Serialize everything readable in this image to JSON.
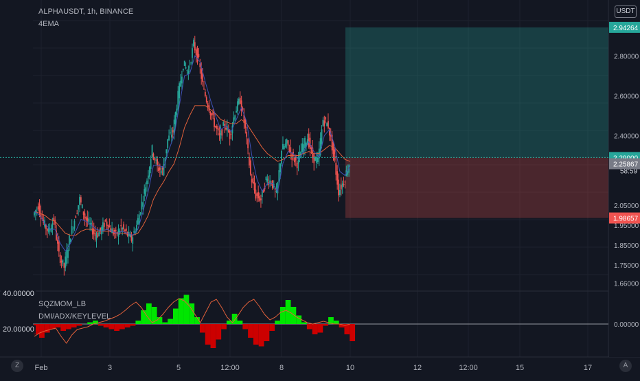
{
  "symbol_header": "ALPHAUSDT, 1h, BINANCE",
  "indicator_header": "4EMA",
  "currency_button": "USDT",
  "price_axis": {
    "ticks": [
      "2.80000",
      "2.60000",
      "2.40000",
      "2.05000",
      "1.95000",
      "1.85000",
      "1.75000",
      "1.66000"
    ],
    "tick_values": [
      2.8,
      2.6,
      2.4,
      2.05,
      1.95,
      1.85,
      1.75,
      1.66
    ],
    "labels": {
      "take_profit": "2.94264",
      "entry": "2.29000",
      "countdown": "58:59",
      "last_price": "2.25867",
      "stop_loss": "1.98657"
    }
  },
  "price_levels": {
    "take_profit": 2.94264,
    "entry": 2.29,
    "last": 2.25867,
    "stop_loss": 1.98657
  },
  "indicator_panel": {
    "title": "SQZMOM_LB",
    "subtitle": "DMI/ADX/KEYLEVEL",
    "left_labels": [
      "40.00000",
      "20.00000"
    ],
    "axis_tick": "0.00000"
  },
  "time_axis": [
    "Feb",
    "3",
    "5",
    "12:00",
    "8",
    "10",
    "12",
    "12:00",
    "15",
    "17"
  ],
  "corner_buttons": {
    "left": "Z",
    "right": "A"
  },
  "colors": {
    "background": "#131722",
    "bull": "#26a69a",
    "bear": "#ef5350",
    "ema_fast": "#3f51b5",
    "ema_slow": "#e0603a",
    "profit_zone": "rgba(38,166,154,0.28)",
    "loss_zone": "rgba(239,83,80,0.25)",
    "histogram_green": "#00e600",
    "histogram_red": "#cc0000"
  },
  "chart_data": {
    "type": "candlestick",
    "title": "ALPHAUSDT, 1h, BINANCE",
    "x": [
      "Feb",
      "3",
      "5",
      "12:00",
      "8",
      "10",
      "12",
      "12:00",
      "15",
      "17"
    ],
    "close_path": [
      2.0,
      2.05,
      1.96,
      1.92,
      1.98,
      1.8,
      1.74,
      1.88,
      1.98,
      2.08,
      1.99,
      1.95,
      1.9,
      1.92,
      1.97,
      1.93,
      1.9,
      1.94,
      1.91,
      1.88,
      1.95,
      2.06,
      2.18,
      2.33,
      2.24,
      2.22,
      2.38,
      2.42,
      2.6,
      2.76,
      2.72,
      2.86,
      2.77,
      2.62,
      2.54,
      2.46,
      2.39,
      2.46,
      2.4,
      2.52,
      2.58,
      2.43,
      2.2,
      2.1,
      2.08,
      2.18,
      2.17,
      2.1,
      2.33,
      2.36,
      2.3,
      2.26,
      2.34,
      2.39,
      2.29,
      2.27,
      2.48,
      2.45,
      2.31,
      2.12,
      2.17,
      2.26
    ],
    "ema_fast_path": [
      2.02,
      2.0,
      1.96,
      1.93,
      1.93,
      1.86,
      1.82,
      1.86,
      1.92,
      1.98,
      1.97,
      1.95,
      1.93,
      1.92,
      1.93,
      1.92,
      1.91,
      1.92,
      1.91,
      1.9,
      1.93,
      2.02,
      2.12,
      2.25,
      2.25,
      2.24,
      2.33,
      2.4,
      2.55,
      2.7,
      2.71,
      2.8,
      2.77,
      2.67,
      2.58,
      2.5,
      2.43,
      2.45,
      2.42,
      2.48,
      2.54,
      2.47,
      2.3,
      2.18,
      2.12,
      2.16,
      2.16,
      2.12,
      2.26,
      2.32,
      2.31,
      2.28,
      2.32,
      2.37,
      2.32,
      2.29,
      2.4,
      2.43,
      2.35,
      2.22,
      2.2,
      2.25
    ],
    "ema_slow_path": [
      2.02,
      2.01,
      2.0,
      1.98,
      1.97,
      1.94,
      1.91,
      1.9,
      1.9,
      1.92,
      1.93,
      1.93,
      1.92,
      1.92,
      1.92,
      1.92,
      1.91,
      1.91,
      1.91,
      1.9,
      1.91,
      1.95,
      2.0,
      2.08,
      2.13,
      2.17,
      2.22,
      2.26,
      2.34,
      2.44,
      2.5,
      2.55,
      2.55,
      2.55,
      2.53,
      2.51,
      2.48,
      2.47,
      2.46,
      2.46,
      2.48,
      2.46,
      2.42,
      2.38,
      2.34,
      2.31,
      2.29,
      2.27,
      2.28,
      2.3,
      2.3,
      2.3,
      2.31,
      2.32,
      2.31,
      2.31,
      2.33,
      2.35,
      2.34,
      2.31,
      2.28,
      2.27
    ],
    "ylim": [
      1.62,
      3.08
    ]
  }
}
